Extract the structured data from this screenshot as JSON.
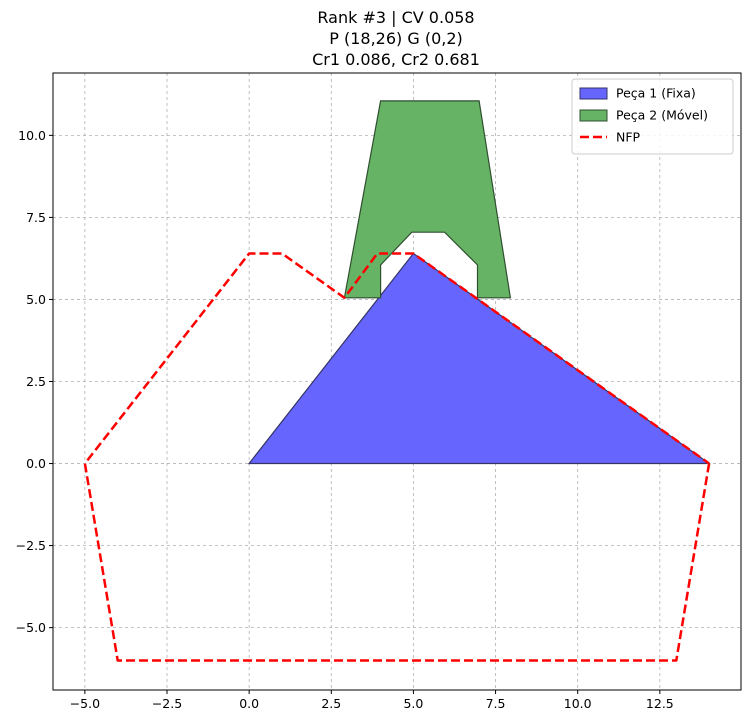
{
  "chart_data": {
    "type": "area",
    "title": [
      "Rank #3 | CV 0.058",
      "P (18,26) G (0,2)",
      "Cr1 0.086, Cr2 0.681"
    ],
    "xlabel": "",
    "ylabel": "",
    "xlim": [
      -5.97,
      14.97
    ],
    "ylim": [
      -6.9,
      11.9
    ],
    "xticks": [
      -5.0,
      -2.5,
      0.0,
      2.5,
      5.0,
      7.5,
      10.0,
      12.5
    ],
    "xtick_labels": [
      "−5.0",
      "−2.5",
      "0.0",
      "2.5",
      "5.0",
      "7.5",
      "10.0",
      "12.5"
    ],
    "yticks": [
      -5.0,
      -2.5,
      0.0,
      2.5,
      5.0,
      7.5,
      10.0
    ],
    "ytick_labels": [
      "−5.0",
      "−2.5",
      "0.0",
      "2.5",
      "5.0",
      "7.5",
      "10.0"
    ],
    "grid": true,
    "legend_position": "top-right",
    "series": [
      {
        "name": "Peça 1 (Fixa)",
        "kind": "polygon",
        "color": "#6666ff",
        "edge": "#333366",
        "points": [
          [
            0,
            0
          ],
          [
            5,
            6.4
          ],
          [
            14,
            0
          ]
        ]
      },
      {
        "name": "Peça 2 (Móvel)",
        "kind": "polygon",
        "color": "#66b366",
        "edge": "#2f4f2f",
        "points": [
          [
            2.9,
            5.05
          ],
          [
            4.0,
            11.05
          ],
          [
            7.0,
            11.05
          ],
          [
            7.95,
            5.05
          ],
          [
            6.95,
            5.05
          ],
          [
            6.95,
            6.05
          ],
          [
            5.95,
            7.05
          ],
          [
            4.95,
            7.05
          ],
          [
            4.0,
            6.05
          ],
          [
            4.0,
            5.05
          ]
        ]
      },
      {
        "name": "NFP",
        "kind": "dashed-line",
        "color": "#ff0000",
        "points": [
          [
            14,
            0
          ],
          [
            13,
            -6
          ],
          [
            -4,
            -6
          ],
          [
            -5,
            0
          ],
          [
            0,
            6.4
          ],
          [
            1,
            6.4
          ],
          [
            2.9,
            5.05
          ],
          [
            3.9,
            6.4
          ],
          [
            5,
            6.4
          ],
          [
            14,
            0
          ]
        ]
      }
    ]
  }
}
